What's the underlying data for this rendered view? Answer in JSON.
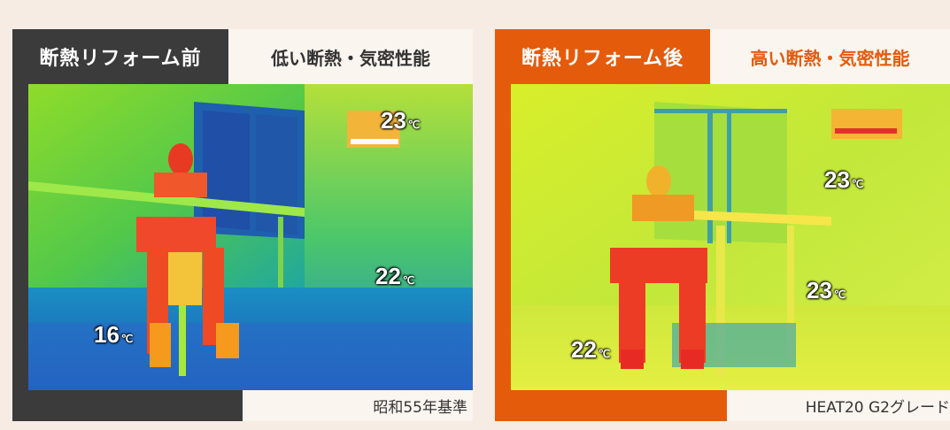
{
  "before": {
    "tag": "断熱リフォーム前",
    "subtitle": "低い断熱・気密性能",
    "standard": "昭和55年基準",
    "temps": [
      {
        "value": "23",
        "unit": "℃"
      },
      {
        "value": "22",
        "unit": "℃"
      },
      {
        "value": "16",
        "unit": "℃"
      }
    ]
  },
  "after": {
    "tag": "断熱リフォーム後",
    "subtitle": "高い断熱・気密性能",
    "standard": "HEAT20 G2グレード",
    "temps": [
      {
        "value": "23",
        "unit": "℃"
      },
      {
        "value": "23",
        "unit": "℃"
      },
      {
        "value": "22",
        "unit": "℃"
      }
    ]
  },
  "colors": {
    "before_accent": "#3b3b3b",
    "after_accent": "#e45b0c",
    "background": "#f6ece4"
  }
}
